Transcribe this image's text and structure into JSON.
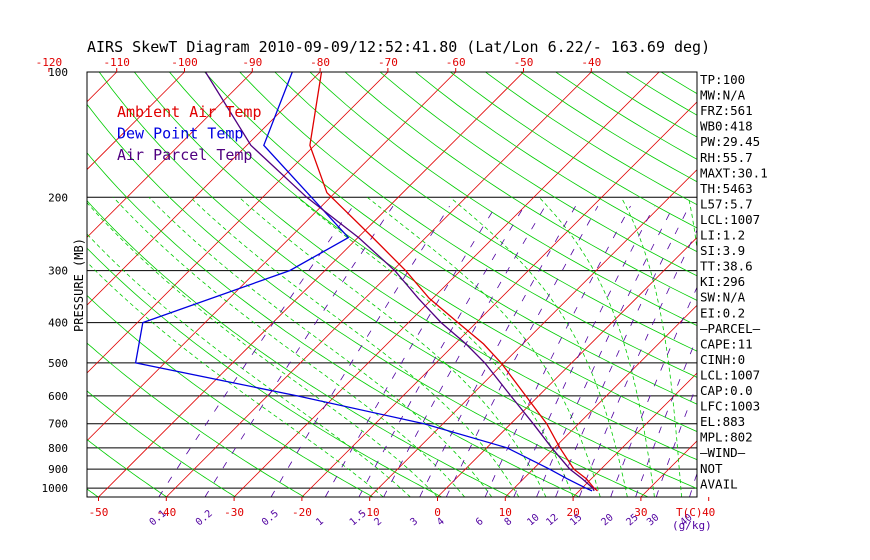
{
  "chart_data": {
    "type": "skewt",
    "title": "AIRS SkewT Diagram 2010-09-09/12:52:41.80 (Lat/Lon 6.22/- 163.69 deg)",
    "ylabel": "PRESSURE (MB)",
    "xlabel_bottom": "T(C)",
    "mixing_ratio_unit": "(g/kg)",
    "pressure_range_mb": [
      100,
      1050
    ],
    "temperature_range_c": [
      -50,
      40
    ],
    "pressure_levels": [
      100,
      200,
      300,
      400,
      500,
      600,
      700,
      800,
      900,
      1000
    ],
    "bottom_temp_ticks": [
      -50,
      -40,
      -30,
      -20,
      -10,
      0,
      10,
      20,
      30,
      40
    ],
    "top_temp_ticks": [
      -120,
      -110,
      -100,
      -90,
      -80,
      -70,
      -60,
      -50,
      -40
    ],
    "mixing_ratio_labels": [
      "0.1",
      "0.2",
      "0.5",
      "1",
      "1.5",
      "2",
      "3",
      "4",
      "6",
      "8",
      "10",
      "12",
      "15",
      "20",
      "25",
      "30",
      "40"
    ],
    "legend": [
      {
        "label": "Ambient Air Temp",
        "color": "#e00000"
      },
      {
        "label": "Dew Point Temp",
        "color": "#0000e0"
      },
      {
        "label": "Air Parcel Temp",
        "color": "#500080"
      }
    ],
    "series": [
      {
        "name": "Ambient Air Temp",
        "color": "#e00000",
        "points": [
          [
            100,
            -79.8
          ],
          [
            150,
            -70.7
          ],
          [
            195,
            -61.2
          ],
          [
            250,
            -47.8
          ],
          [
            300,
            -38.1
          ],
          [
            350,
            -30.5
          ],
          [
            400,
            -22.7
          ],
          [
            450,
            -15.8
          ],
          [
            500,
            -10.4
          ],
          [
            600,
            -1.9
          ],
          [
            700,
            5.3
          ],
          [
            800,
            10.8
          ],
          [
            900,
            16.0
          ],
          [
            950,
            19.3
          ],
          [
            1000,
            21.8
          ],
          [
            1015,
            22.7
          ]
        ]
      },
      {
        "name": "Dew Point Temp",
        "color": "#0000e0",
        "points": [
          [
            100,
            -84.1
          ],
          [
            150,
            -77.5
          ],
          [
            250,
            -51.4
          ],
          [
            300,
            -55.2
          ],
          [
            400,
            -69.2
          ],
          [
            500,
            -64.3
          ],
          [
            600,
            -35.6
          ],
          [
            700,
            -12.8
          ],
          [
            800,
            3.0
          ],
          [
            900,
            12.4
          ],
          [
            950,
            16.5
          ],
          [
            1000,
            20.6
          ],
          [
            1015,
            21.9
          ]
        ]
      },
      {
        "name": "Air Parcel Temp",
        "color": "#500080",
        "points": [
          [
            100,
            -96.9
          ],
          [
            150,
            -79.4
          ],
          [
            200,
            -63.5
          ],
          [
            250,
            -49.9
          ],
          [
            300,
            -39.7
          ],
          [
            350,
            -32.1
          ],
          [
            400,
            -25.2
          ],
          [
            450,
            -18.4
          ],
          [
            500,
            -12.8
          ],
          [
            600,
            -4.1
          ],
          [
            700,
            3.3
          ],
          [
            800,
            9.6
          ],
          [
            900,
            15.4
          ],
          [
            950,
            18.7
          ],
          [
            1000,
            21.6
          ],
          [
            1015,
            22.2
          ]
        ]
      }
    ],
    "indices": [
      "TP:100",
      "MW:N/A",
      "FRZ:561",
      "WB0:418",
      "PW:29.45",
      "RH:55.7",
      "MAXT:30.1",
      "TH:5463",
      "L57:5.7",
      "LCL:1007",
      "LI:1.2",
      "SI:3.9",
      "TT:38.6",
      "KI:296",
      "SW:N/A",
      "EI:0.2",
      "—PARCEL—",
      "CAPE:11",
      "CINH:0",
      "LCL:1007",
      "CAP:0.0",
      "LFC:1003",
      "EL:883",
      "MPL:802",
      "—WIND—",
      "NOT",
      "AVAIL"
    ]
  },
  "colors": {
    "isotherm": "#e00000",
    "dry_adiabat": "#00cc00",
    "moist_adiabat": "#00cc00",
    "mixing_ratio": "#5000a0",
    "frame": "#000000",
    "tick_label": "#e00000",
    "mr_label": "#5000a0"
  }
}
